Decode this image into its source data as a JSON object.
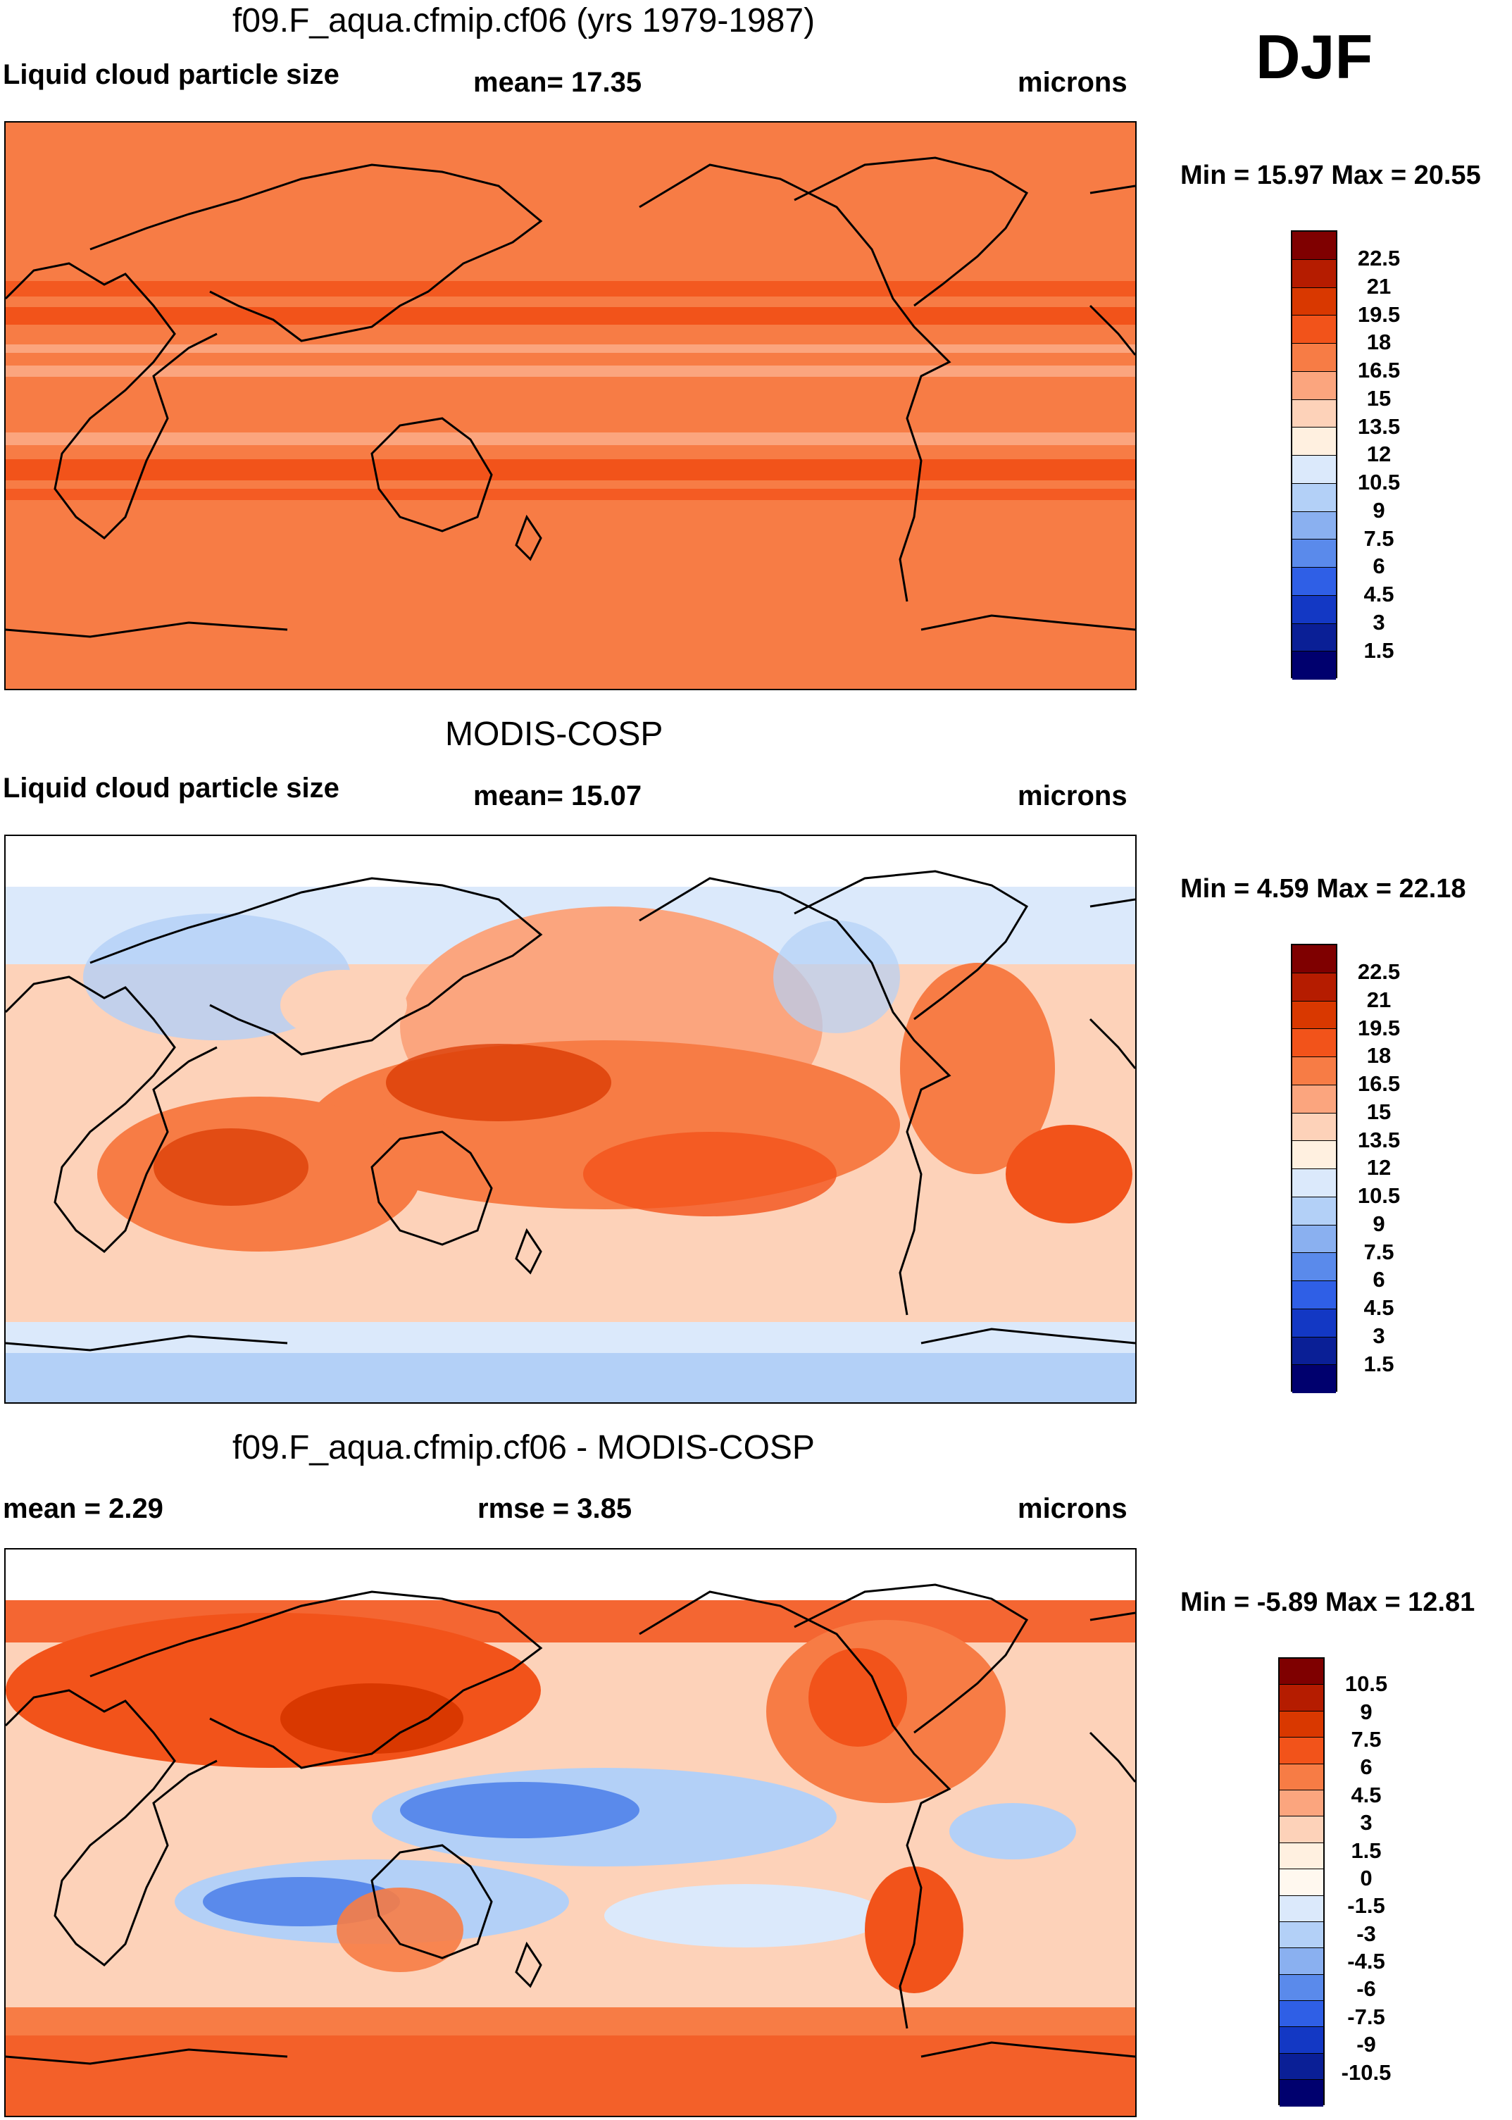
{
  "season": "DJF",
  "panels": [
    {
      "title": "f09.F_aqua.cfmip.cf06 (yrs 1979-1987)",
      "left_label": "Liquid cloud particle size",
      "mid_label": "mean=  17.35",
      "right_label": "microns",
      "minmax": "Min =  15.97 Max =  20.55",
      "colorbar_ticks": [
        "22.5",
        "21",
        "19.5",
        "18",
        "16.5",
        "15",
        "13.5",
        "12",
        "10.5",
        "9",
        "7.5",
        "6",
        "4.5",
        "3",
        "1.5"
      ]
    },
    {
      "title": "MODIS-COSP",
      "left_label": "Liquid cloud particle size",
      "mid_label": "mean=  15.07",
      "right_label": "microns",
      "minmax": "Min =   4.59 Max =  22.18",
      "colorbar_ticks": [
        "22.5",
        "21",
        "19.5",
        "18",
        "16.5",
        "15",
        "13.5",
        "12",
        "10.5",
        "9",
        "7.5",
        "6",
        "4.5",
        "3",
        "1.5"
      ]
    },
    {
      "title": "f09.F_aqua.cfmip.cf06 - MODIS-COSP",
      "left_label": "mean =    2.29",
      "mid_label": "rmse =    3.85",
      "right_label": "microns",
      "minmax": "Min =  -5.89 Max =  12.81",
      "colorbar_ticks": [
        "10.5",
        "9",
        "7.5",
        "6",
        "4.5",
        "3",
        "1.5",
        "0",
        "-1.5",
        "-3",
        "-4.5",
        "-6",
        "-7.5",
        "-9",
        "-10.5"
      ]
    }
  ],
  "colors": {
    "scale": [
      "#7f0000",
      "#b51c00",
      "#d93800",
      "#f2531a",
      "#f77c45",
      "#fba57e",
      "#fdd2b9",
      "#fff0e0",
      "#dbe9fb",
      "#b3d0f7",
      "#8ab0f0",
      "#5a8aeb",
      "#2f5fe6",
      "#1338c4",
      "#0a1f96",
      "#00006e"
    ],
    "diff_scale": [
      "#7f0000",
      "#b51c00",
      "#d93800",
      "#f2531a",
      "#f77c45",
      "#fba57e",
      "#fdd2b9",
      "#fff0e0",
      "#fff8ef",
      "#dbe9fb",
      "#b3d0f7",
      "#8ab0f0",
      "#5a8aeb",
      "#2f5fe6",
      "#1338c4",
      "#0a1f96",
      "#00006e"
    ]
  }
}
